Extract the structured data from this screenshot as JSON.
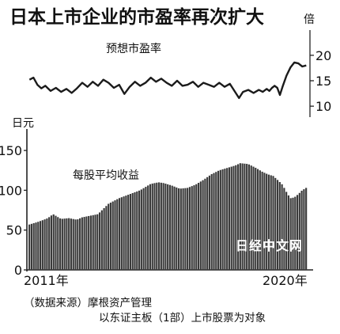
{
  "chart_data": [
    {
      "type": "line",
      "title": "日本上市企业的市盈率再次扩大",
      "series_label": "预想市盈率",
      "unit": "倍",
      "yticks": [
        10,
        15,
        20
      ],
      "ylim": [
        8,
        22
      ],
      "xlim": [
        2010.9,
        2021.7
      ],
      "series": [
        {
          "x": [
            2011.0,
            2011.15,
            2011.3,
            2011.45,
            2011.6,
            2011.8,
            2012.0,
            2012.2,
            2012.4,
            2012.6,
            2012.8,
            2013.0,
            2013.2,
            2013.4,
            2013.6,
            2013.8,
            2014.0,
            2014.2,
            2014.4,
            2014.6,
            2014.8,
            2015.0,
            2015.2,
            2015.4,
            2015.6,
            2015.8,
            2016.0,
            2016.2,
            2016.4,
            2016.6,
            2016.8,
            2017.0,
            2017.2,
            2017.4,
            2017.6,
            2017.8,
            2018.0,
            2018.2,
            2018.4,
            2018.6,
            2018.8,
            2018.95,
            2019.1,
            2019.3,
            2019.5,
            2019.7,
            2019.85,
            2020.0,
            2020.1,
            2020.2,
            2020.3,
            2020.4,
            2020.5,
            2020.6,
            2020.75,
            2020.9,
            2021.05,
            2021.2,
            2021.35,
            2021.5
          ],
          "values": [
            15.2,
            15.6,
            14.2,
            13.5,
            14.0,
            13.0,
            13.6,
            12.8,
            13.4,
            12.6,
            13.5,
            14.6,
            13.8,
            14.8,
            14.0,
            15.2,
            14.6,
            13.6,
            14.2,
            12.4,
            13.8,
            14.8,
            14.0,
            14.6,
            15.6,
            14.8,
            15.4,
            14.6,
            14.0,
            15.0,
            14.0,
            14.2,
            14.8,
            13.8,
            14.6,
            14.2,
            13.8,
            14.6,
            13.8,
            14.4,
            12.8,
            11.6,
            12.8,
            13.2,
            12.6,
            13.2,
            12.8,
            13.4,
            13.0,
            13.6,
            14.0,
            13.6,
            12.2,
            13.8,
            16.0,
            17.6,
            18.6,
            18.4,
            17.8,
            18.0
          ]
        }
      ]
    },
    {
      "type": "bar",
      "title": "每股平均收益",
      "unit": "日元",
      "yticks": [
        0,
        50,
        100,
        150
      ],
      "ylim": [
        0,
        170
      ],
      "xticks": [
        "2011年",
        "2020年"
      ],
      "xlim": [
        2010.9,
        2021.7
      ],
      "series": [
        {
          "x": [
            2011.0,
            2011.3,
            2011.55,
            2011.7,
            2011.9,
            2012.2,
            2012.5,
            2012.8,
            2013.0,
            2013.3,
            2013.6,
            2014.0,
            2014.4,
            2014.8,
            2015.2,
            2015.6,
            2015.9,
            2016.1,
            2016.4,
            2016.7,
            2017.0,
            2017.3,
            2017.6,
            2017.9,
            2018.2,
            2018.5,
            2018.8,
            2019.0,
            2019.3,
            2019.6,
            2019.85,
            2020.05,
            2020.25,
            2020.45,
            2020.6,
            2020.75,
            2020.9,
            2021.05,
            2021.2,
            2021.35,
            2021.5
          ],
          "values": [
            57,
            60,
            63,
            65,
            70,
            64,
            65,
            63,
            66,
            68,
            70,
            83,
            90,
            95,
            100,
            108,
            110,
            109,
            106,
            102,
            103,
            107,
            113,
            120,
            125,
            128,
            131,
            134,
            133,
            128,
            123,
            120,
            118,
            112,
            107,
            98,
            90,
            91,
            95,
            100,
            103
          ]
        }
      ]
    }
  ],
  "watermark": "日经中文网",
  "source_line1": "（数据来源）摩根资产管理",
  "source_line2": "以东证主板（1部）上市股票为对象"
}
